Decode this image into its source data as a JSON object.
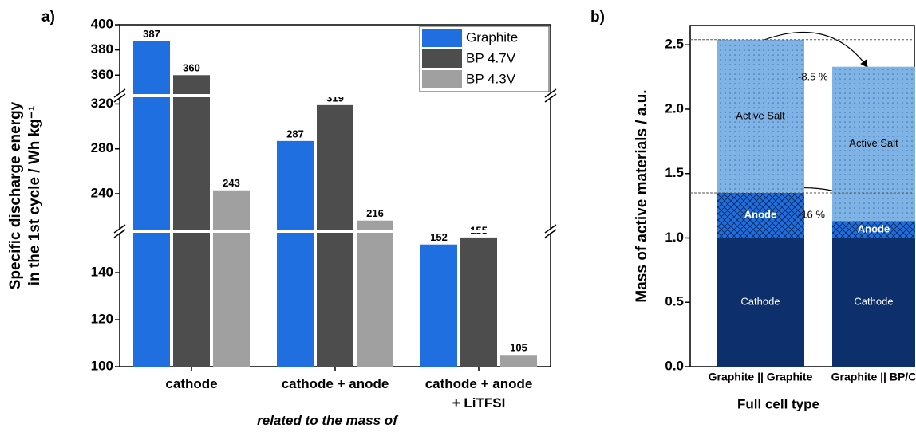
{
  "chart_data": [
    {
      "type": "bar",
      "panel_label": "a)",
      "y_label": [
        "Specific discharge energy",
        "in the 1st cycle / Wh kg⁻¹"
      ],
      "x_label": "related to the mass of",
      "categories": [
        "cathode",
        "cathode + anode",
        "cathode + anode\n+ LiTFSI"
      ],
      "series": [
        {
          "name": "Graphite",
          "color": "#1f6fe0",
          "values": [
            387,
            287,
            152
          ]
        },
        {
          "name": "BP 4.7V",
          "color": "#4d4d4d",
          "values": [
            360,
            319,
            155
          ]
        },
        {
          "name": "BP 4.3V",
          "color": "#a0a0a0",
          "values": [
            243,
            216,
            105
          ]
        }
      ],
      "ylim": [
        100,
        400
      ],
      "y_breaks": [
        [
          157,
          208
        ],
        [
          326,
          345
        ]
      ],
      "yticks": [
        100,
        120,
        140,
        240,
        280,
        320,
        360,
        380,
        400
      ],
      "legend": "upper right"
    },
    {
      "type": "stacked_bar",
      "panel_label": "b)",
      "y_label": "Mass of active materials / a.u.",
      "x_label": "Full cell type",
      "categories": [
        "Graphite || Graphite",
        "Graphite || BP/C"
      ],
      "series": [
        {
          "name": "Cathode",
          "color": "#0d2f6b",
          "pattern": "none",
          "values": [
            1.0,
            1.0
          ]
        },
        {
          "name": "Anode",
          "color": "#1f6fe0",
          "pattern": "crosshatch",
          "values": [
            0.35,
            0.13
          ]
        },
        {
          "name": "Active Salt",
          "color": "#7fb3e6",
          "pattern": "dots",
          "values": [
            1.19,
            1.2
          ]
        }
      ],
      "ylim": [
        0,
        2.65
      ],
      "yticks": [
        {
          "value": 0,
          "label": "0.0"
        },
        0.5,
        {
          "value": 1,
          "label": "1.0"
        },
        1.5,
        {
          "value": 2,
          "label": "2.0"
        },
        2.5
      ],
      "annotations": [
        "-8.5 %",
        "-16 %"
      ]
    }
  ]
}
